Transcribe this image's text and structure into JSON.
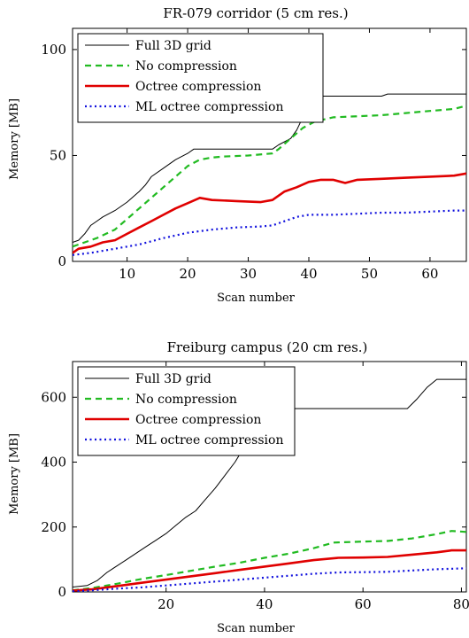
{
  "charts": [
    {
      "title": "FR-079 corridor (5 cm res.)",
      "xlabel": "Scan number",
      "ylabel": "Memory [MB]",
      "xticks": [
        "10",
        "20",
        "30",
        "40",
        "50",
        "60"
      ],
      "yticks": [
        "0",
        "50",
        "100"
      ]
    },
    {
      "title": "Freiburg campus (20 cm res.)",
      "xlabel": "Scan number",
      "ylabel": "Memory [MB]",
      "xticks": [
        "20",
        "40",
        "60",
        "80"
      ],
      "yticks": [
        "0",
        "200",
        "400",
        "600"
      ]
    }
  ],
  "chart_data": [
    {
      "type": "line",
      "title": "FR-079 corridor (5 cm res.)",
      "xlabel": "Scan number",
      "ylabel": "Memory [MB]",
      "xlim": [
        1,
        66
      ],
      "ylim": [
        0,
        110
      ],
      "x_ticks": [
        10,
        20,
        30,
        40,
        50,
        60
      ],
      "y_ticks": [
        0,
        50,
        100
      ],
      "grid": false,
      "legend_position": "top-left",
      "series": [
        {
          "name": "Full 3D grid",
          "color": "#000000",
          "style": "solid-thin",
          "x": [
            1,
            2,
            3,
            4,
            5,
            6,
            8,
            10,
            12,
            13,
            14,
            16,
            18,
            20,
            21,
            22,
            26,
            30,
            34,
            35,
            37,
            38,
            39,
            40,
            42,
            44,
            48,
            52,
            53,
            56,
            60,
            64,
            66
          ],
          "y": [
            9,
            10,
            13,
            17,
            19,
            21,
            24,
            28,
            33,
            36,
            40,
            44,
            48,
            51,
            53,
            53,
            53,
            53,
            53,
            55,
            58,
            62,
            68,
            74,
            78,
            78,
            78,
            78,
            79,
            79,
            79,
            79,
            79
          ]
        },
        {
          "name": "No compression",
          "color": "#22bb22",
          "style": "dashed",
          "x": [
            1,
            3,
            5,
            8,
            10,
            12,
            14,
            16,
            18,
            20,
            22,
            24,
            26,
            30,
            34,
            35,
            37,
            39,
            41,
            44,
            48,
            52,
            56,
            60,
            64,
            66
          ],
          "y": [
            7,
            9,
            11,
            15,
            20,
            25,
            30,
            35,
            40,
            45,
            48,
            49,
            49.5,
            50,
            51,
            53,
            58,
            63,
            66,
            68,
            68.5,
            69,
            70,
            71,
            72,
            73.5
          ]
        },
        {
          "name": "Octree compression",
          "color": "#e00000",
          "style": "solid-thick",
          "x": [
            1,
            2,
            4,
            6,
            8,
            10,
            12,
            14,
            16,
            18,
            20,
            22,
            24,
            28,
            32,
            34,
            36,
            38,
            40,
            42,
            44,
            46,
            48,
            52,
            56,
            60,
            64,
            66
          ],
          "y": [
            4,
            6,
            7,
            9,
            10,
            13,
            16,
            19,
            22,
            25,
            27.5,
            30,
            29,
            28.5,
            28,
            29,
            33,
            35,
            37.5,
            38.5,
            38.5,
            37,
            38.5,
            39,
            39.5,
            40,
            40.5,
            41.5
          ]
        },
        {
          "name": "ML octree compression",
          "color": "#1010dd",
          "style": "dotted",
          "x": [
            1,
            4,
            8,
            12,
            16,
            20,
            24,
            28,
            32,
            34,
            36,
            38,
            40,
            44,
            48,
            52,
            56,
            60,
            64,
            66
          ],
          "y": [
            3,
            4,
            6,
            8,
            11,
            13.5,
            15,
            16,
            16.5,
            17,
            19,
            21,
            22,
            22,
            22.5,
            23,
            23,
            23.5,
            24,
            24
          ]
        }
      ]
    },
    {
      "type": "line",
      "title": "Freiburg campus (20 cm res.)",
      "xlabel": "Scan number",
      "ylabel": "Memory [MB]",
      "xlim": [
        1,
        81
      ],
      "ylim": [
        0,
        710
      ],
      "x_ticks": [
        20,
        40,
        60,
        80
      ],
      "y_ticks": [
        0,
        200,
        400,
        600
      ],
      "grid": false,
      "legend_position": "top-left",
      "series": [
        {
          "name": "Full 3D grid",
          "color": "#000000",
          "style": "solid-thin",
          "x": [
            1,
            4,
            6,
            8,
            10,
            12,
            14,
            16,
            18,
            20,
            22,
            24,
            26,
            28,
            30,
            32,
            34,
            36,
            38,
            39,
            40,
            50,
            60,
            69,
            71,
            73,
            75,
            81
          ],
          "y": [
            15,
            20,
            35,
            60,
            80,
            100,
            120,
            140,
            160,
            180,
            205,
            230,
            250,
            285,
            320,
            360,
            400,
            450,
            510,
            560,
            565,
            565,
            565,
            565,
            595,
            630,
            655,
            655
          ]
        },
        {
          "name": "No compression",
          "color": "#22bb22",
          "style": "dashed",
          "x": [
            1,
            5,
            10,
            15,
            20,
            25,
            30,
            35,
            40,
            45,
            50,
            54,
            60,
            65,
            70,
            75,
            78,
            81
          ],
          "y": [
            5,
            12,
            25,
            40,
            52,
            65,
            78,
            90,
            105,
            118,
            135,
            152,
            155,
            157,
            165,
            178,
            188,
            185
          ]
        },
        {
          "name": "Octree compression",
          "color": "#e00000",
          "style": "solid-thick",
          "x": [
            1,
            5,
            10,
            15,
            20,
            25,
            30,
            35,
            40,
            45,
            50,
            55,
            60,
            65,
            70,
            75,
            78,
            81
          ],
          "y": [
            4,
            8,
            18,
            28,
            38,
            48,
            58,
            68,
            78,
            88,
            98,
            105,
            106,
            108,
            115,
            122,
            128,
            128
          ]
        },
        {
          "name": "ML octree compression",
          "color": "#1010dd",
          "style": "dotted",
          "x": [
            1,
            5,
            10,
            15,
            20,
            25,
            30,
            35,
            40,
            45,
            50,
            55,
            60,
            65,
            70,
            75,
            81
          ],
          "y": [
            2,
            5,
            10,
            14,
            20,
            26,
            32,
            38,
            44,
            50,
            56,
            60,
            61,
            62,
            66,
            70,
            73
          ]
        }
      ]
    }
  ]
}
